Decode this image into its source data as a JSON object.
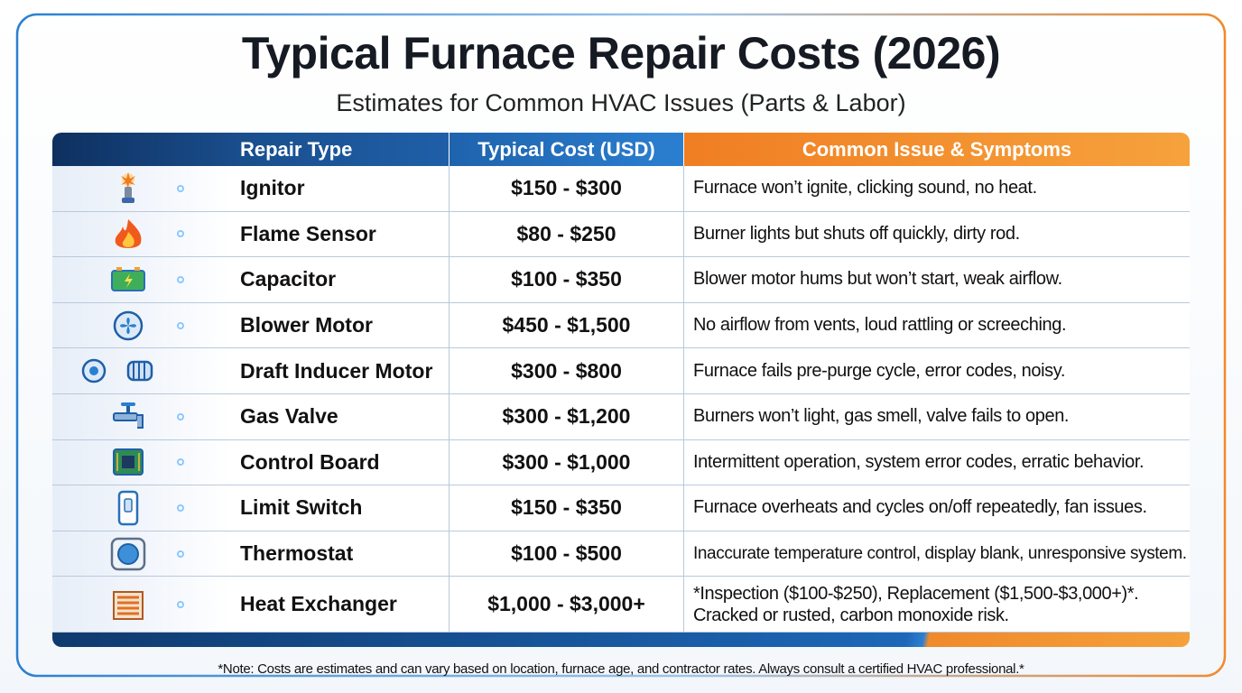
{
  "header": {
    "title": "Typical Furnace Repair Costs (2026)",
    "subtitle": "Estimates for Common HVAC Issues (Parts & Labor)"
  },
  "table": {
    "columns": [
      "Repair Type",
      "Typical Cost (USD)",
      "Common Issue & Symptoms"
    ],
    "rows": [
      [
        "Ignitor",
        "$150 - $300",
        "Furnace won’t ignite, clicking sound, no heat."
      ],
      [
        "Flame Sensor",
        "$80 - $250",
        "Burner lights but shuts off quickly, dirty rod."
      ],
      [
        "Capacitor",
        "$100 - $350",
        "Blower motor hums but won’t start, weak airflow."
      ],
      [
        "Blower Motor",
        "$450 - $1,500",
        "No airflow from vents, loud rattling or screeching."
      ],
      [
        "Draft Inducer Motor",
        "$300 - $800",
        "Furnace fails pre-purge cycle, error codes, noisy."
      ],
      [
        "Gas Valve",
        "$300 - $1,200",
        "Burners won’t light, gas smell, valve fails to open."
      ],
      [
        "Control Board",
        "$300 - $1,000",
        "Intermittent operation, system error codes, erratic behavior."
      ],
      [
        "Limit Switch",
        "$150 - $350",
        "Furnace overheats and cycles on/off repeatedly, fan issues."
      ],
      [
        "Thermostat",
        "$100 - $500",
        "Inaccurate temperature control, display blank, unresponsive system."
      ],
      [
        "Heat Exchanger",
        "$1,000 - $3,000+",
        [
          "*Inspection ($100-$250), Replacement ($1,500-$3,000+)*.",
          "Cracked or rusted, carbon monoxide risk."
        ]
      ]
    ]
  },
  "note": "*Note: Costs are estimates and can vary based on location, furnace age, and contractor rates. Always consult a certified HVAC professional.*"
}
